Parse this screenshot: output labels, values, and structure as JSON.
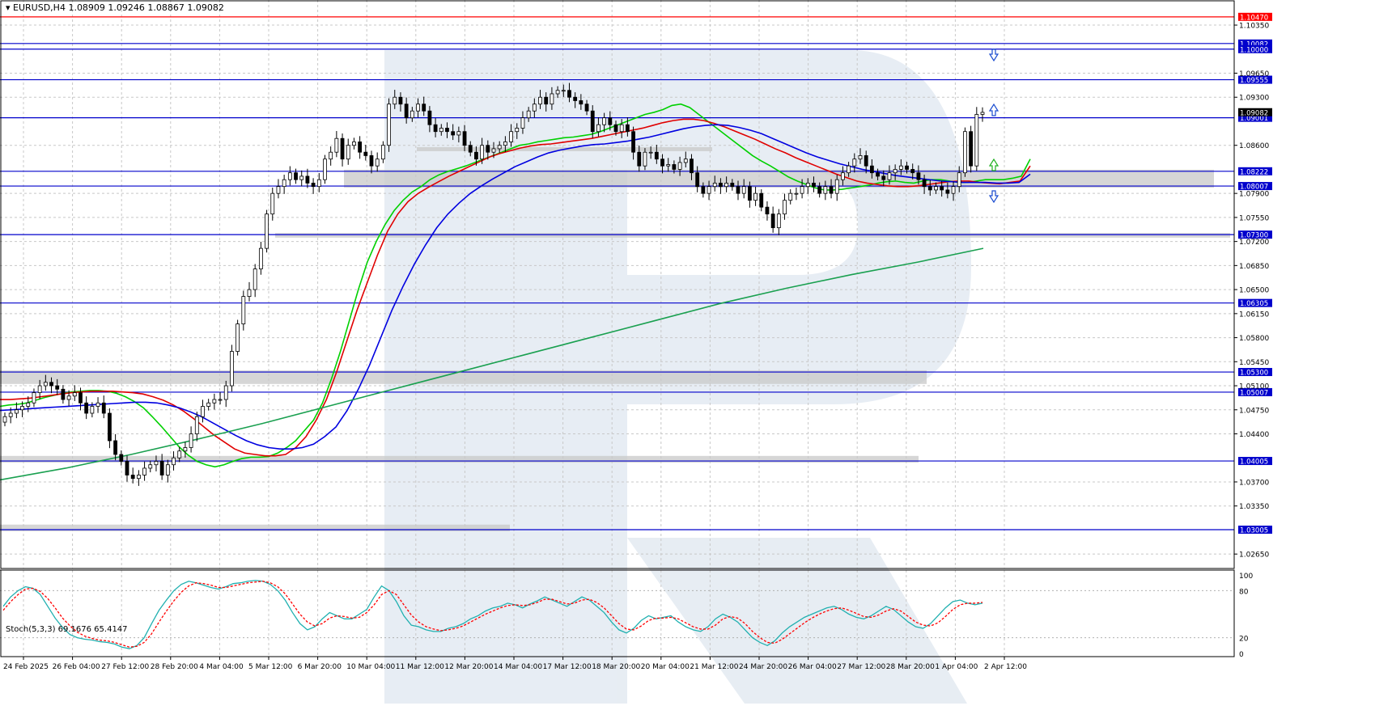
{
  "header": {
    "symbol_line": "EURUSD,H4  1.08909 1.09246 1.08867 1.09082"
  },
  "stoch_header": "Stoch(5,3,3) 69.1676 65.4147",
  "colors": {
    "up": "#ffffff",
    "down": "#000000",
    "ma_fast": "#00d000",
    "ma_mid": "#e00000",
    "ma_slow": "#0000e0",
    "ma_long": "#1aa050",
    "level_line": "#0000cc",
    "resistance_line": "#ff0000",
    "zone": "#c8c8c8",
    "stoch_main": "#20b0b0",
    "stoch_signal": "#ff0000",
    "label_bg": "#0000cc"
  },
  "chart_data": [
    {
      "type": "candlestick",
      "title": "EURUSD,H4",
      "ylim": [
        1.0244,
        1.1068
      ],
      "price_ticks": [
        "1.10350",
        "1.09650",
        "1.09300",
        "1.08600",
        "1.07900",
        "1.07550",
        "1.07200",
        "1.06850",
        "1.06500",
        "1.06150",
        "1.05800",
        "1.05450",
        "1.05100",
        "1.04750",
        "1.04400",
        "1.03700",
        "1.03350",
        "1.02650"
      ],
      "x_tick_labels": [
        "24 Feb 2025",
        "26 Feb 04:00",
        "27 Feb 12:00",
        "28 Feb 20:00",
        "4 Mar 04:00",
        "5 Mar 12:00",
        "6 Mar 20:00",
        "10 Mar 04:00",
        "11 Mar 12:00",
        "12 Mar 20:00",
        "14 Mar 04:00",
        "17 Mar 12:00",
        "18 Mar 20:00",
        "20 Mar 04:00",
        "21 Mar 12:00",
        "24 Mar 20:00",
        "26 Mar 04:00",
        "27 Mar 12:00",
        "28 Mar 20:00",
        "1 Apr 04:00",
        "2 Apr 12:00"
      ],
      "close": [
        1.0465,
        1.047,
        1.0475,
        1.048,
        1.0485,
        1.05,
        1.051,
        1.0515,
        1.051,
        1.0505,
        1.049,
        1.0495,
        1.05,
        1.0485,
        1.047,
        1.048,
        1.0485,
        1.047,
        1.043,
        1.041,
        1.04,
        1.038,
        1.0375,
        1.038,
        1.039,
        1.0395,
        1.04,
        1.038,
        1.0395,
        1.0405,
        1.0415,
        1.042,
        1.044,
        1.0465,
        1.048,
        1.0485,
        1.049,
        1.049,
        1.051,
        1.056,
        1.06,
        1.064,
        1.065,
        1.068,
        1.071,
        1.076,
        1.079,
        1.08,
        1.081,
        1.082,
        1.081,
        1.0815,
        1.0805,
        1.08,
        1.081,
        1.084,
        1.085,
        1.087,
        1.084,
        1.086,
        1.0865,
        1.085,
        1.0845,
        1.083,
        1.084,
        1.086,
        1.092,
        1.093,
        1.092,
        1.09,
        1.091,
        1.092,
        1.091,
        1.089,
        1.088,
        1.0885,
        1.088,
        1.0875,
        1.088,
        1.086,
        1.085,
        1.084,
        1.086,
        1.085,
        1.0855,
        1.086,
        1.0865,
        1.088,
        1.0885,
        1.09,
        1.091,
        1.092,
        1.093,
        1.092,
        1.0935,
        1.094,
        1.094,
        1.093,
        1.0925,
        1.092,
        1.091,
        1.088,
        1.089,
        1.09,
        1.089,
        1.088,
        1.089,
        1.088,
        1.085,
        1.083,
        1.085,
        1.085,
        1.084,
        1.083,
        1.0832,
        1.0825,
        1.0835,
        1.084,
        1.082,
        1.08,
        1.079,
        1.08,
        1.0805,
        1.08,
        1.0805,
        1.08,
        1.079,
        1.08,
        1.078,
        1.079,
        1.077,
        1.076,
        1.074,
        1.076,
        1.078,
        1.079,
        1.079,
        1.08,
        1.0805,
        1.08,
        1.079,
        1.08,
        1.079,
        1.081,
        1.082,
        1.083,
        1.084,
        1.0845,
        1.083,
        1.082,
        1.0815,
        1.081,
        1.082,
        1.0825,
        1.083,
        1.0825,
        1.082,
        1.081,
        1.08,
        1.0795,
        1.08,
        1.0795,
        1.079,
        1.08,
        1.082,
        1.088,
        1.083,
        1.0905,
        1.0908
      ],
      "moving_averages": [
        {
          "color": "#00d000",
          "values": [
            1.048,
            1.0482,
            1.0483,
            1.0485,
            1.0489,
            1.0493,
            1.0496,
            1.0499,
            1.0501,
            1.0502,
            1.0503,
            1.0503,
            1.0502,
            1.0499,
            1.0494,
            1.0487,
            1.0478,
            1.0465,
            1.0451,
            1.0436,
            1.0421,
            1.0409,
            1.04,
            1.0395,
            1.0392,
            1.0395,
            1.04,
            1.0404,
            1.0406,
            1.0406,
            1.0407,
            1.0412,
            1.042,
            1.043,
            1.0445,
            1.046,
            1.0485,
            1.052,
            1.056,
            1.0605,
            1.065,
            1.069,
            1.072,
            1.0745,
            1.0765,
            1.078,
            1.0792,
            1.08,
            1.081,
            1.0817,
            1.0822,
            1.0826,
            1.083,
            1.0835,
            1.084,
            1.0845,
            1.085,
            1.0855,
            1.086,
            1.0862,
            1.0865,
            1.0867,
            1.0869,
            1.0871,
            1.0872,
            1.0874,
            1.0876,
            1.088,
            1.0885,
            1.089,
            1.0895,
            1.09,
            1.0905,
            1.0908,
            1.0912,
            1.0918,
            1.092,
            1.0915,
            1.0905,
            1.0895,
            1.0885,
            1.0875,
            1.0865,
            1.0855,
            1.0845,
            1.0837,
            1.083,
            1.0822,
            1.0814,
            1.0808,
            1.0803,
            1.0798,
            1.0795,
            1.0795,
            1.0796,
            1.0798,
            1.08,
            1.0802,
            1.0805,
            1.0807,
            1.0808,
            1.0806,
            1.0805,
            1.0808,
            1.081,
            1.081,
            1.0808,
            1.0806,
            1.0806,
            1.0808,
            1.081,
            1.081,
            1.081,
            1.0812,
            1.0815,
            1.084
          ]
        },
        {
          "color": "#e00000",
          "values": [
            1.049,
            1.049,
            1.0491,
            1.0492,
            1.0494,
            1.0496,
            1.0498,
            1.05,
            1.0501,
            1.0502,
            1.0502,
            1.0502,
            1.0501,
            1.05,
            1.0498,
            1.0494,
            1.0489,
            1.0482,
            1.0473,
            1.0462,
            1.045,
            1.0438,
            1.0428,
            1.0418,
            1.0412,
            1.041,
            1.0408,
            1.0408,
            1.041,
            1.042,
            1.0436,
            1.046,
            1.049,
            1.053,
            1.0575,
            1.062,
            1.066,
            1.07,
            1.0735,
            1.076,
            1.0778,
            1.079,
            1.0799,
            1.0807,
            1.0815,
            1.0822,
            1.0829,
            1.0836,
            1.0843,
            1.0848,
            1.0852,
            1.0856,
            1.0859,
            1.0861,
            1.0862,
            1.0864,
            1.0866,
            1.0868,
            1.087,
            1.0873,
            1.0876,
            1.0879,
            1.0882,
            1.0885,
            1.0889,
            1.0893,
            1.0896,
            1.0898,
            1.0898,
            1.0896,
            1.0892,
            1.0887,
            1.0881,
            1.0875,
            1.0869,
            1.0862,
            1.0855,
            1.0849,
            1.0842,
            1.0836,
            1.083,
            1.0824,
            1.0818,
            1.0813,
            1.0808,
            1.0805,
            1.0803,
            1.0801,
            1.08,
            1.08,
            1.0801,
            1.0803,
            1.0805,
            1.0807,
            1.0808,
            1.0808,
            1.0806,
            1.0805,
            1.0804,
            1.0806,
            1.0808,
            1.083
          ]
        },
        {
          "color": "#0000e0",
          "values": [
            1.0474,
            1.0475,
            1.0476,
            1.0477,
            1.0478,
            1.0479,
            1.048,
            1.0481,
            1.0482,
            1.0483,
            1.0484,
            1.0485,
            1.0486,
            1.0486,
            1.0485,
            1.0482,
            1.0478,
            1.0472,
            1.0465,
            1.0456,
            1.0447,
            1.0438,
            1.043,
            1.0424,
            1.042,
            1.0418,
            1.0418,
            1.042,
            1.0425,
            1.0436,
            1.045,
            1.0474,
            1.0505,
            1.054,
            1.058,
            1.062,
            1.0655,
            1.0687,
            1.0715,
            1.074,
            1.076,
            1.0776,
            1.079,
            1.0801,
            1.0811,
            1.082,
            1.0829,
            1.0836,
            1.0843,
            1.0849,
            1.0853,
            1.0856,
            1.0859,
            1.0861,
            1.0862,
            1.0864,
            1.0866,
            1.0869,
            1.0872,
            1.0876,
            1.088,
            1.0884,
            1.0887,
            1.0889,
            1.089,
            1.0889,
            1.0886,
            1.0882,
            1.0877,
            1.087,
            1.0863,
            1.0856,
            1.0849,
            1.0843,
            1.0838,
            1.0833,
            1.0829,
            1.0825,
            1.0822,
            1.0819,
            1.0816,
            1.0814,
            1.0812,
            1.081,
            1.0808,
            1.0807,
            1.0806,
            1.0806,
            1.0806,
            1.0805,
            1.0805,
            1.0806,
            1.0818
          ]
        },
        {
          "color": "#1aa050",
          "values": [
            1.0373,
            1.039,
            1.041,
            1.0432,
            1.0455,
            1.048,
            1.0505,
            1.053,
            1.0555,
            1.058,
            1.0605,
            1.063,
            1.0652,
            1.0672,
            1.069,
            1.071
          ]
        }
      ],
      "levels": [
        "1.10470",
        "1.10082",
        "1.10000",
        "1.09555",
        "1.09001",
        "1.08222",
        "1.08007",
        "1.07300",
        "1.06305",
        "1.05300",
        "1.05007",
        "1.04005",
        "1.03005"
      ],
      "price_labels": [
        "1.09082"
      ]
    },
    {
      "type": "line",
      "title": "Stoch(5,3,3) 69.1676 65.4147",
      "ylim": [
        0,
        100
      ],
      "y_ticks": [
        "100",
        "80",
        "20",
        "0"
      ],
      "series": [
        {
          "values": [
            60,
            72,
            80,
            85,
            83,
            75,
            60,
            45,
            33,
            24,
            20,
            18,
            17,
            15,
            14,
            12,
            8,
            6,
            10,
            20,
            38,
            55,
            68,
            80,
            88,
            92,
            90,
            87,
            84,
            82,
            85,
            89,
            90,
            92,
            93,
            92,
            88,
            80,
            68,
            52,
            38,
            30,
            34,
            44,
            52,
            48,
            44,
            44,
            50,
            56,
            72,
            86,
            80,
            66,
            48,
            36,
            34,
            30,
            28,
            28,
            32,
            34,
            38,
            44,
            48,
            54,
            58,
            60,
            64,
            62,
            58,
            63,
            67,
            72,
            68,
            64,
            60,
            66,
            72,
            68,
            60,
            52,
            40,
            30,
            26,
            32,
            42,
            48,
            44,
            46,
            48,
            40,
            34,
            30,
            28,
            34,
            44,
            50,
            46,
            40,
            30,
            20,
            14,
            10,
            16,
            26,
            34,
            40,
            46,
            50,
            54,
            58,
            60,
            56,
            50,
            46,
            44,
            48,
            54,
            60,
            56,
            48,
            40,
            34,
            32,
            38,
            48,
            58,
            66,
            68,
            64,
            62,
            64
          ]
        },
        {
          "values": [
            55,
            66,
            75,
            82,
            83,
            79,
            70,
            58,
            45,
            35,
            27,
            22,
            19,
            17,
            16,
            14,
            11,
            8,
            9,
            14,
            25,
            40,
            54,
            67,
            78,
            86,
            90,
            89,
            87,
            84,
            84,
            86,
            88,
            90,
            91,
            92,
            90,
            85,
            76,
            63,
            50,
            40,
            35,
            38,
            45,
            48,
            47,
            45,
            46,
            52,
            62,
            75,
            80,
            75,
            62,
            49,
            40,
            34,
            31,
            29,
            30,
            32,
            35,
            40,
            45,
            50,
            54,
            58,
            61,
            62,
            61,
            62,
            65,
            69,
            69,
            66,
            63,
            64,
            68,
            69,
            65,
            58,
            48,
            38,
            31,
            30,
            35,
            42,
            45,
            45,
            46,
            44,
            39,
            34,
            31,
            31,
            36,
            44,
            47,
            45,
            38,
            28,
            20,
            14,
            13,
            18,
            25,
            32,
            39,
            45,
            50,
            54,
            57,
            58,
            55,
            51,
            47,
            46,
            49,
            54,
            57,
            54,
            47,
            40,
            36,
            35,
            39,
            47,
            56,
            62,
            64,
            64,
            65
          ]
        }
      ]
    }
  ]
}
